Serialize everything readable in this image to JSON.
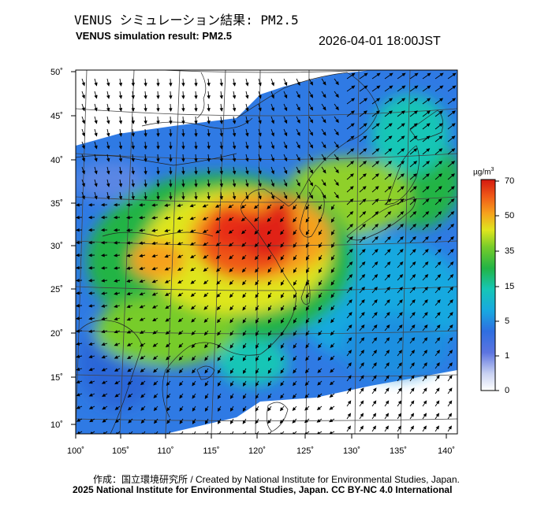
{
  "title_jp": "VENUS シミュレーション結果: PM2.5",
  "title_en": "VENUS simulation result: PM2.5",
  "timestamp": "2026-04-01 18:00JST",
  "map": {
    "lat_ticks": [
      "50˚",
      "45˚",
      "40˚",
      "35˚",
      "30˚",
      "25˚",
      "20˚",
      "15˚",
      "10˚"
    ],
    "lon_ticks": [
      "100˚",
      "105˚",
      "110˚",
      "115˚",
      "120˚",
      "125˚",
      "130˚",
      "135˚",
      "140˚"
    ]
  },
  "colorbar": {
    "unit_main": "µg/m",
    "unit_sup": "3",
    "labels": [
      "70",
      "50",
      "35",
      "15",
      "5",
      "1",
      "0"
    ],
    "colors": [
      "#d41a10",
      "#f05a18",
      "#f6a11d",
      "#dfe61e",
      "#77cc2a",
      "#22b445",
      "#16c6b6",
      "#18a9e0",
      "#2f6ee0",
      "#6f8be6",
      "#d7ddf5",
      "#ffffff"
    ]
  },
  "credit_line1": "作成：国立環境研究所 / Created by National Institute for Environmental Studies, Japan.",
  "credit_line2": "2025 National Institute for Environmental Studies, Japan. CC BY-NC 4.0 International"
}
